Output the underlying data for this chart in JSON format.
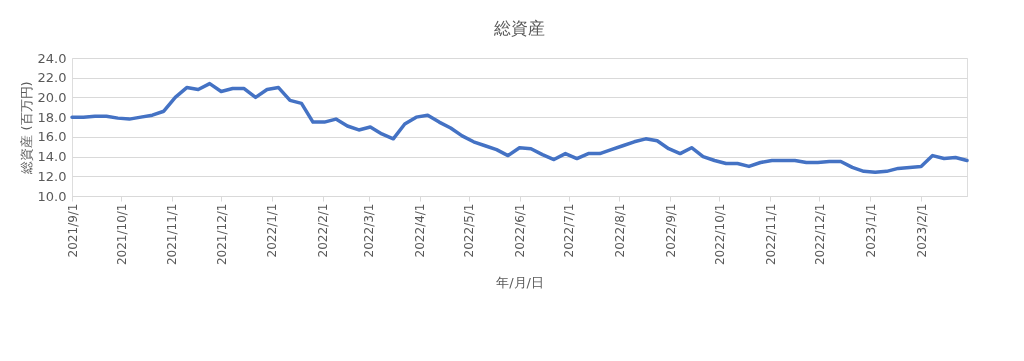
{
  "chart_data": {
    "type": "line",
    "title": "総資産",
    "xlabel": "年/月/日",
    "ylabel": "総資産 (百万円)",
    "x": [
      "2021-09-01",
      "2021-09-08",
      "2021-09-15",
      "2021-09-22",
      "2021-09-29",
      "2021-10-06",
      "2021-10-13",
      "2021-10-20",
      "2021-10-27",
      "2021-11-03",
      "2021-11-10",
      "2021-11-17",
      "2021-11-24",
      "2021-12-01",
      "2021-12-08",
      "2021-12-15",
      "2021-12-22",
      "2021-12-29",
      "2022-01-05",
      "2022-01-12",
      "2022-01-19",
      "2022-01-26",
      "2022-02-02",
      "2022-02-09",
      "2022-02-16",
      "2022-02-23",
      "2022-03-02",
      "2022-03-09",
      "2022-03-16",
      "2022-03-23",
      "2022-03-30",
      "2022-04-06",
      "2022-04-13",
      "2022-04-20",
      "2022-04-27",
      "2022-05-04",
      "2022-05-11",
      "2022-05-18",
      "2022-05-25",
      "2022-06-01",
      "2022-06-08",
      "2022-06-15",
      "2022-06-22",
      "2022-06-29",
      "2022-07-06",
      "2022-07-13",
      "2022-07-20",
      "2022-07-27",
      "2022-08-03",
      "2022-08-10",
      "2022-08-17",
      "2022-08-24",
      "2022-08-31",
      "2022-09-07",
      "2022-09-14",
      "2022-09-21",
      "2022-09-28",
      "2022-10-05",
      "2022-10-12",
      "2022-10-19",
      "2022-10-26",
      "2022-11-02",
      "2022-11-09",
      "2022-11-16",
      "2022-11-23",
      "2022-11-30",
      "2022-12-07",
      "2022-12-14",
      "2022-12-21",
      "2022-12-28",
      "2023-01-04",
      "2023-01-11",
      "2023-01-18",
      "2023-01-25",
      "2023-02-01",
      "2023-02-08",
      "2023-02-15",
      "2023-02-22",
      "2023-03-01"
    ],
    "series": [
      {
        "color": "#4472c4",
        "values": [
          18.0,
          18.0,
          18.1,
          18.1,
          17.9,
          17.8,
          18.0,
          18.2,
          18.6,
          20.0,
          21.0,
          20.8,
          21.4,
          20.6,
          20.9,
          20.9,
          20.0,
          20.8,
          21.0,
          19.7,
          19.4,
          17.5,
          17.5,
          17.8,
          17.1,
          16.7,
          17.0,
          16.3,
          15.8,
          17.3,
          18.0,
          18.2,
          17.5,
          16.9,
          16.1,
          15.5,
          15.1,
          14.7,
          14.1,
          14.9,
          14.8,
          14.2,
          13.7,
          14.3,
          13.8,
          14.3,
          14.3,
          14.7,
          15.1,
          15.5,
          15.8,
          15.6,
          14.8,
          14.3,
          14.9,
          14.0,
          13.6,
          13.3,
          13.3,
          13.0,
          13.4,
          13.6,
          13.6,
          13.6,
          13.4,
          13.4,
          13.5,
          13.5,
          12.9,
          12.5,
          12.4,
          12.5,
          12.8,
          12.9,
          13.0,
          14.1,
          13.8,
          13.9,
          13.6
        ]
      }
    ],
    "xlim": [
      "2021-09-01",
      "2023-03-01"
    ],
    "xticks": [
      {
        "value": "2021-09-01",
        "label": "2021/9/1"
      },
      {
        "value": "2021-10-01",
        "label": "2021/10/1"
      },
      {
        "value": "2021-11-01",
        "label": "2021/11/1"
      },
      {
        "value": "2021-12-01",
        "label": "2021/12/1"
      },
      {
        "value": "2022-01-01",
        "label": "2022/1/1"
      },
      {
        "value": "2022-02-01",
        "label": "2022/2/1"
      },
      {
        "value": "2022-03-01",
        "label": "2022/3/1"
      },
      {
        "value": "2022-04-01",
        "label": "2022/4/1"
      },
      {
        "value": "2022-05-01",
        "label": "2022/5/1"
      },
      {
        "value": "2022-06-01",
        "label": "2022/6/1"
      },
      {
        "value": "2022-07-01",
        "label": "2022/7/1"
      },
      {
        "value": "2022-08-01",
        "label": "2022/8/1"
      },
      {
        "value": "2022-09-01",
        "label": "2022/9/1"
      },
      {
        "value": "2022-10-01",
        "label": "2022/10/1"
      },
      {
        "value": "2022-11-01",
        "label": "2022/11/1"
      },
      {
        "value": "2022-12-01",
        "label": "2022/12/1"
      },
      {
        "value": "2023-01-01",
        "label": "2023/1/1"
      },
      {
        "value": "2023-02-01",
        "label": "2023/2/1"
      }
    ],
    "ylim": [
      10.0,
      24.0
    ],
    "yticks": [
      {
        "value": 10,
        "label": "10.0"
      },
      {
        "value": 12,
        "label": "12.0"
      },
      {
        "value": 14,
        "label": "14.0"
      },
      {
        "value": 16,
        "label": "16.0"
      },
      {
        "value": 18,
        "label": "18.0"
      },
      {
        "value": 20,
        "label": "20.0"
      },
      {
        "value": 22,
        "label": "22.0"
      },
      {
        "value": 24,
        "label": "24.0"
      }
    ],
    "grid": "y",
    "legend": false,
    "marker": "none",
    "line_style": "solid"
  }
}
